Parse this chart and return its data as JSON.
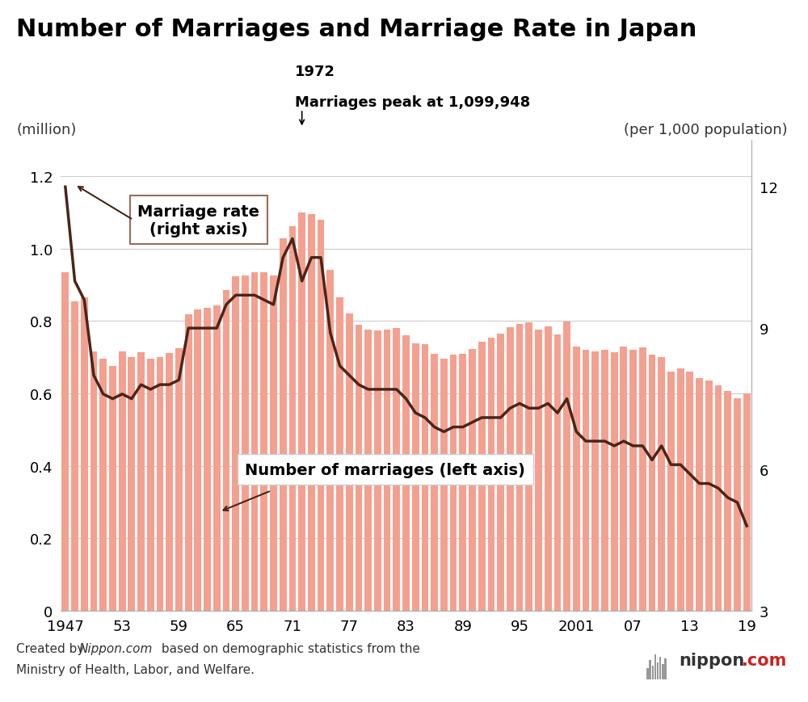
{
  "title": "Number of Marriages and Marriage Rate in Japan",
  "ylabel_left": "(million)",
  "ylabel_right": "(per 1,000 population)",
  "bar_color": "#F4A090",
  "line_color": "#4A2518",
  "background_color": "#FFFFFF",
  "ylim_left": [
    0,
    1.3
  ],
  "ylim_right": [
    3,
    13
  ],
  "yticks_left": [
    0,
    0.2,
    0.4,
    0.6,
    0.8,
    1.0,
    1.2
  ],
  "yticks_right": [
    3,
    6,
    9,
    12
  ],
  "xtick_labels": [
    "1947",
    "53",
    "59",
    "65",
    "71",
    "77",
    "83",
    "89",
    "95",
    "2001",
    "07",
    "13",
    "19"
  ],
  "xtick_years": [
    1947,
    1953,
    1959,
    1965,
    1971,
    1977,
    1983,
    1989,
    1995,
    2001,
    2007,
    2013,
    2019
  ],
  "years": [
    1947,
    1948,
    1949,
    1950,
    1951,
    1952,
    1953,
    1954,
    1955,
    1956,
    1957,
    1958,
    1959,
    1960,
    1961,
    1962,
    1963,
    1964,
    1965,
    1966,
    1967,
    1968,
    1969,
    1970,
    1971,
    1972,
    1973,
    1974,
    1975,
    1976,
    1977,
    1978,
    1979,
    1980,
    1981,
    1982,
    1983,
    1984,
    1985,
    1986,
    1987,
    1988,
    1989,
    1990,
    1991,
    1992,
    1993,
    1994,
    1995,
    1996,
    1997,
    1998,
    1999,
    2000,
    2001,
    2002,
    2003,
    2004,
    2005,
    2006,
    2007,
    2008,
    2009,
    2010,
    2011,
    2012,
    2013,
    2014,
    2015,
    2016,
    2017,
    2018,
    2019
  ],
  "marriages_millions": [
    0.934,
    0.853,
    0.866,
    0.715,
    0.695,
    0.676,
    0.715,
    0.7,
    0.714,
    0.695,
    0.701,
    0.712,
    0.724,
    0.819,
    0.832,
    0.836,
    0.842,
    0.886,
    0.923,
    0.925,
    0.934,
    0.935,
    0.925,
    1.029,
    1.061,
    1.1,
    1.095,
    1.08,
    0.94,
    0.864,
    0.82,
    0.79,
    0.775,
    0.774,
    0.777,
    0.781,
    0.76,
    0.738,
    0.735,
    0.708,
    0.696,
    0.707,
    0.708,
    0.722,
    0.742,
    0.754,
    0.765,
    0.782,
    0.791,
    0.795,
    0.775,
    0.784,
    0.762,
    0.798,
    0.73,
    0.72,
    0.716,
    0.72,
    0.714,
    0.73,
    0.72,
    0.726,
    0.707,
    0.7,
    0.661,
    0.668,
    0.659,
    0.643,
    0.635,
    0.621,
    0.607,
    0.586,
    0.599
  ],
  "marriage_rate": [
    12.0,
    10.0,
    9.6,
    8.0,
    7.6,
    7.5,
    7.6,
    7.5,
    7.8,
    7.7,
    7.8,
    7.8,
    7.9,
    9.0,
    9.0,
    9.0,
    9.0,
    9.5,
    9.7,
    9.7,
    9.7,
    9.6,
    9.5,
    10.5,
    10.9,
    10.0,
    10.5,
    10.5,
    8.9,
    8.2,
    8.0,
    7.8,
    7.7,
    7.7,
    7.7,
    7.7,
    7.5,
    7.2,
    7.1,
    6.9,
    6.8,
    6.9,
    6.9,
    7.0,
    7.1,
    7.1,
    7.1,
    7.3,
    7.4,
    7.3,
    7.3,
    7.4,
    7.2,
    7.5,
    6.8,
    6.6,
    6.6,
    6.6,
    6.5,
    6.6,
    6.5,
    6.5,
    6.2,
    6.5,
    6.1,
    6.1,
    5.9,
    5.7,
    5.7,
    5.6,
    5.4,
    5.3,
    4.8
  ]
}
